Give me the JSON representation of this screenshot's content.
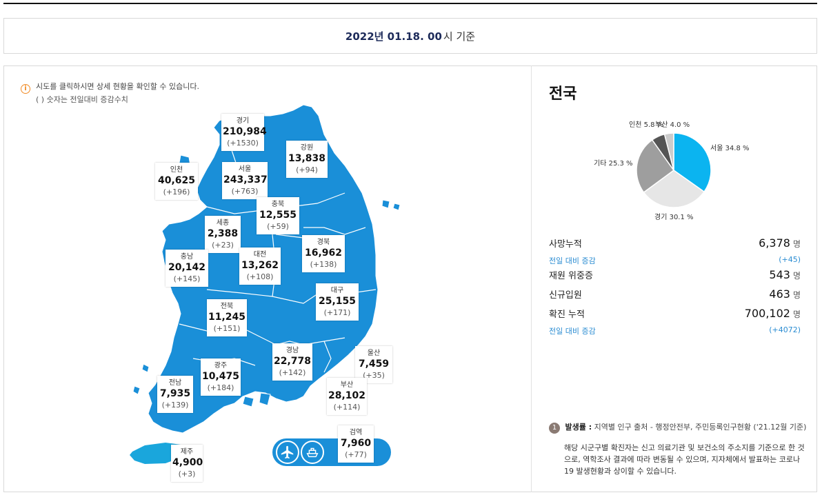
{
  "header": {
    "date_strong": "2022년 01.18. 00",
    "date_suffix": "시 기준"
  },
  "notice": {
    "line1": "시도를 클릭하시면 상세 현황을 확인할 수 있습니다.",
    "line2": "( ) 숫자는 전일대비 증감수치",
    "icon": "info-icon"
  },
  "map": {
    "land_color": "#1a8fd8",
    "jeju_color": "#1aa6dc",
    "regions": [
      {
        "key": "gyeonggi",
        "name": "경기",
        "value": "210,984",
        "change": "(+1530)"
      },
      {
        "key": "gangwon",
        "name": "강원",
        "value": "13,838",
        "change": "(+94)"
      },
      {
        "key": "incheon",
        "name": "인천",
        "value": "40,625",
        "change": "(+196)"
      },
      {
        "key": "seoul",
        "name": "서울",
        "value": "243,337",
        "change": "(+763)"
      },
      {
        "key": "chungbuk",
        "name": "충북",
        "value": "12,555",
        "change": "(+59)"
      },
      {
        "key": "sejong",
        "name": "세종",
        "value": "2,388",
        "change": "(+23)"
      },
      {
        "key": "gyeongbuk",
        "name": "경북",
        "value": "16,962",
        "change": "(+138)"
      },
      {
        "key": "chungnam",
        "name": "충남",
        "value": "20,142",
        "change": "(+145)"
      },
      {
        "key": "daejeon",
        "name": "대전",
        "value": "13,262",
        "change": "(+108)"
      },
      {
        "key": "daegu",
        "name": "대구",
        "value": "25,155",
        "change": "(+171)"
      },
      {
        "key": "jeonbuk",
        "name": "전북",
        "value": "11,245",
        "change": "(+151)"
      },
      {
        "key": "gyeongnam",
        "name": "경남",
        "value": "22,778",
        "change": "(+142)"
      },
      {
        "key": "ulsan",
        "name": "울산",
        "value": "7,459",
        "change": "(+35)"
      },
      {
        "key": "gwangju",
        "name": "광주",
        "value": "10,475",
        "change": "(+184)"
      },
      {
        "key": "jeonnam",
        "name": "전남",
        "value": "7,935",
        "change": "(+139)"
      },
      {
        "key": "busan",
        "name": "부산",
        "value": "28,102",
        "change": "(+114)"
      },
      {
        "key": "quarantine",
        "name": "검역",
        "value": "7,960",
        "change": "(+77)"
      },
      {
        "key": "jeju",
        "name": "제주",
        "value": "4,900",
        "change": "(+3)"
      }
    ],
    "quarantine_icons": [
      "airplane-icon",
      "ship-icon"
    ]
  },
  "nation": {
    "title": "전국",
    "pie": {
      "colors": {
        "seoul": "#0bb4f0",
        "gyeonggi": "#e6e6e6",
        "other": "#9e9e9e",
        "incheon": "#555555",
        "busan": "#cccccc"
      },
      "slices": [
        {
          "label": "서울 34.8 %",
          "value": 34.8
        },
        {
          "label": "경기 30.1 %",
          "value": 30.1
        },
        {
          "label": "기타 25.3 %",
          "value": 25.3
        },
        {
          "label": "인천 5.8 %",
          "value": 5.8
        },
        {
          "label": "부산 4.0 %",
          "value": 4.0
        }
      ]
    },
    "stats": {
      "deaths_label": "사망누적",
      "deaths_value": "6,378",
      "deaths_unit": "명",
      "deaths_delta_label": "전일 대비 증감",
      "deaths_delta": "(+45)",
      "critical_label": "재원 위중증",
      "critical_value": "543",
      "critical_unit": "명",
      "admitted_label": "신규입원",
      "admitted_value": "463",
      "admitted_unit": "명",
      "confirmed_label": "확진 누적",
      "confirmed_value": "700,102",
      "confirmed_unit": "명",
      "confirmed_delta_label": "전일 대비 증감",
      "confirmed_delta": "(+4072)"
    }
  },
  "footnote": {
    "number": "1",
    "title": "발생률 :",
    "text": "지역별 인구 출처 - 행정안전부, 주민등록인구현황 ('21.12월 기준)",
    "body": "해당 시군구별 확진자는 신고 의료기관 및 보건소의 주소지를 기준으로 한 것으로, 역학조사 결과에 따라 변동될 수 있으며, 지자체에서 발표하는 코로나19 발생현황과 상이할 수 있습니다."
  }
}
